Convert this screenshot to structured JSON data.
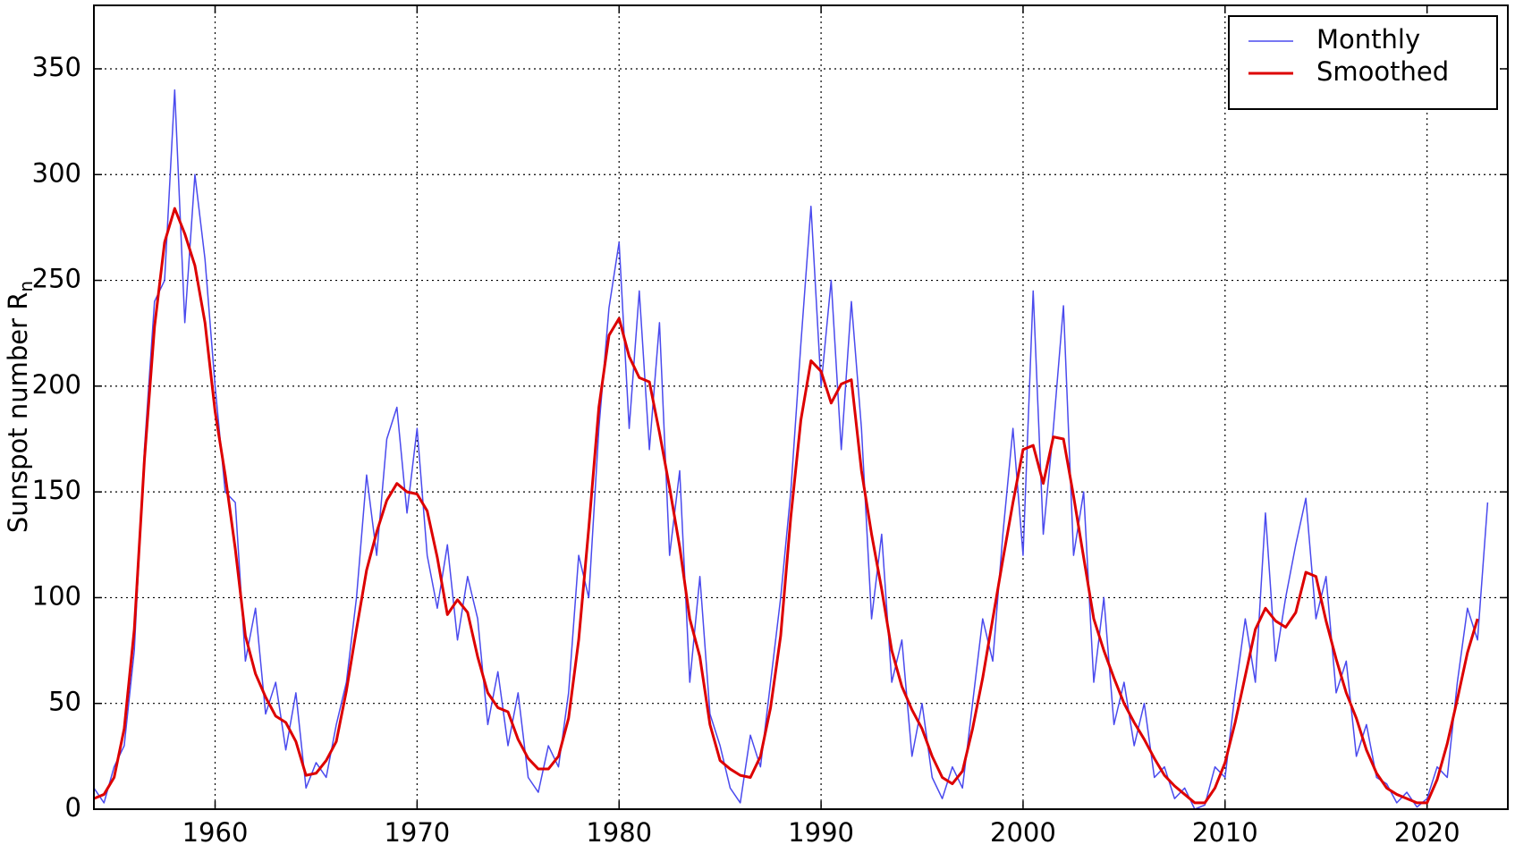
{
  "chart_data": {
    "type": "line",
    "ylabel": "Sunspot number R",
    "ylabel_sub": "n",
    "x": [
      1954.0,
      1954.5,
      1955.0,
      1955.5,
      1956.0,
      1956.5,
      1957.0,
      1957.5,
      1958.0,
      1958.5,
      1959.0,
      1959.5,
      1960.0,
      1960.5,
      1961.0,
      1961.5,
      1962.0,
      1962.5,
      1963.0,
      1963.5,
      1964.0,
      1964.5,
      1965.0,
      1965.5,
      1966.0,
      1966.5,
      1967.0,
      1967.5,
      1968.0,
      1968.5,
      1969.0,
      1969.5,
      1970.0,
      1970.5,
      1971.0,
      1971.5,
      1972.0,
      1972.5,
      1973.0,
      1973.5,
      1974.0,
      1974.5,
      1975.0,
      1975.5,
      1976.0,
      1976.5,
      1977.0,
      1977.5,
      1978.0,
      1978.5,
      1979.0,
      1979.5,
      1980.0,
      1980.5,
      1981.0,
      1981.5,
      1982.0,
      1982.5,
      1983.0,
      1983.5,
      1984.0,
      1984.5,
      1985.0,
      1985.5,
      1986.0,
      1986.5,
      1987.0,
      1987.5,
      1988.0,
      1988.5,
      1989.0,
      1989.5,
      1990.0,
      1990.5,
      1991.0,
      1991.5,
      1992.0,
      1992.5,
      1993.0,
      1993.5,
      1994.0,
      1994.5,
      1995.0,
      1995.5,
      1996.0,
      1996.5,
      1997.0,
      1997.5,
      1998.0,
      1998.5,
      1999.0,
      1999.5,
      2000.0,
      2000.5,
      2001.0,
      2001.5,
      2002.0,
      2002.5,
      2003.0,
      2003.5,
      2004.0,
      2004.5,
      2005.0,
      2005.5,
      2006.0,
      2006.5,
      2007.0,
      2007.5,
      2008.0,
      2008.5,
      2009.0,
      2009.5,
      2010.0,
      2010.5,
      2011.0,
      2011.5,
      2012.0,
      2012.5,
      2013.0,
      2013.5,
      2014.0,
      2014.5,
      2015.0,
      2015.5,
      2016.0,
      2016.5,
      2017.0,
      2017.5,
      2018.0,
      2018.5,
      2019.0,
      2019.5,
      2020.0,
      2020.5,
      2021.0,
      2021.5,
      2022.0,
      2022.5,
      2023.0
    ],
    "series": [
      {
        "name": "Monthly",
        "color": "#4a4aee",
        "width": 1.5,
        "values": [
          10,
          3,
          20,
          30,
          75,
          170,
          240,
          250,
          340,
          230,
          300,
          260,
          200,
          150,
          145,
          70,
          95,
          45,
          60,
          28,
          55,
          10,
          22,
          15,
          40,
          60,
          100,
          158,
          120,
          175,
          190,
          140,
          180,
          120,
          95,
          125,
          80,
          110,
          90,
          40,
          65,
          30,
          55,
          15,
          8,
          30,
          20,
          55,
          120,
          100,
          180,
          237,
          268,
          180,
          245,
          170,
          230,
          120,
          160,
          60,
          110,
          45,
          30,
          10,
          3,
          35,
          20,
          60,
          100,
          150,
          220,
          285,
          200,
          250,
          170,
          240,
          180,
          90,
          130,
          60,
          80,
          25,
          50,
          15,
          5,
          20,
          10,
          50,
          90,
          70,
          130,
          180,
          120,
          245,
          130,
          180,
          238,
          120,
          150,
          60,
          100,
          40,
          60,
          30,
          50,
          15,
          20,
          5,
          10,
          0,
          2,
          20,
          15,
          55,
          90,
          60,
          140,
          70,
          100,
          125,
          147,
          90,
          110,
          55,
          70,
          25,
          40,
          15,
          12,
          3,
          8,
          1,
          5,
          20,
          15,
          60,
          95,
          80,
          145
        ]
      },
      {
        "name": "Smoothed",
        "color": "#dd0000",
        "width": 3,
        "values": [
          5,
          7,
          15,
          38,
          85,
          165,
          228,
          268,
          284,
          272,
          257,
          230,
          188,
          158,
          123,
          82,
          64,
          53,
          44,
          41,
          32,
          16,
          17,
          23,
          32,
          56,
          85,
          113,
          131,
          146,
          154,
          150,
          149,
          141,
          119,
          92,
          99,
          93,
          72,
          55,
          48,
          46,
          33,
          24,
          19,
          19,
          25,
          43,
          80,
          133,
          190,
          224,
          232,
          214,
          204,
          202,
          178,
          152,
          124,
          90,
          72,
          40,
          23,
          19,
          16,
          15,
          25,
          48,
          82,
          138,
          184,
          212,
          207,
          192,
          201,
          203,
          160,
          130,
          104,
          75,
          58,
          47,
          38,
          25,
          15,
          12,
          18,
          38,
          62,
          90,
          118,
          145,
          170,
          172,
          154,
          176,
          175,
          148,
          119,
          90,
          75,
          62,
          50,
          41,
          33,
          24,
          16,
          11,
          7,
          3,
          3,
          10,
          22,
          41,
          63,
          85,
          95,
          89,
          86,
          93,
          112,
          110,
          89,
          71,
          55,
          43,
          28,
          17,
          10,
          7,
          5,
          3,
          3,
          14,
          31,
          52,
          74,
          90,
          null
        ]
      }
    ],
    "xlim": [
      1954,
      2024
    ],
    "xticks": [
      1960,
      1970,
      1980,
      1990,
      2000,
      2010,
      2020
    ],
    "ylim": [
      0,
      380
    ],
    "yticks": [
      0,
      50,
      100,
      150,
      200,
      250,
      300,
      350
    ],
    "grid": true,
    "legend": "upper right"
  }
}
